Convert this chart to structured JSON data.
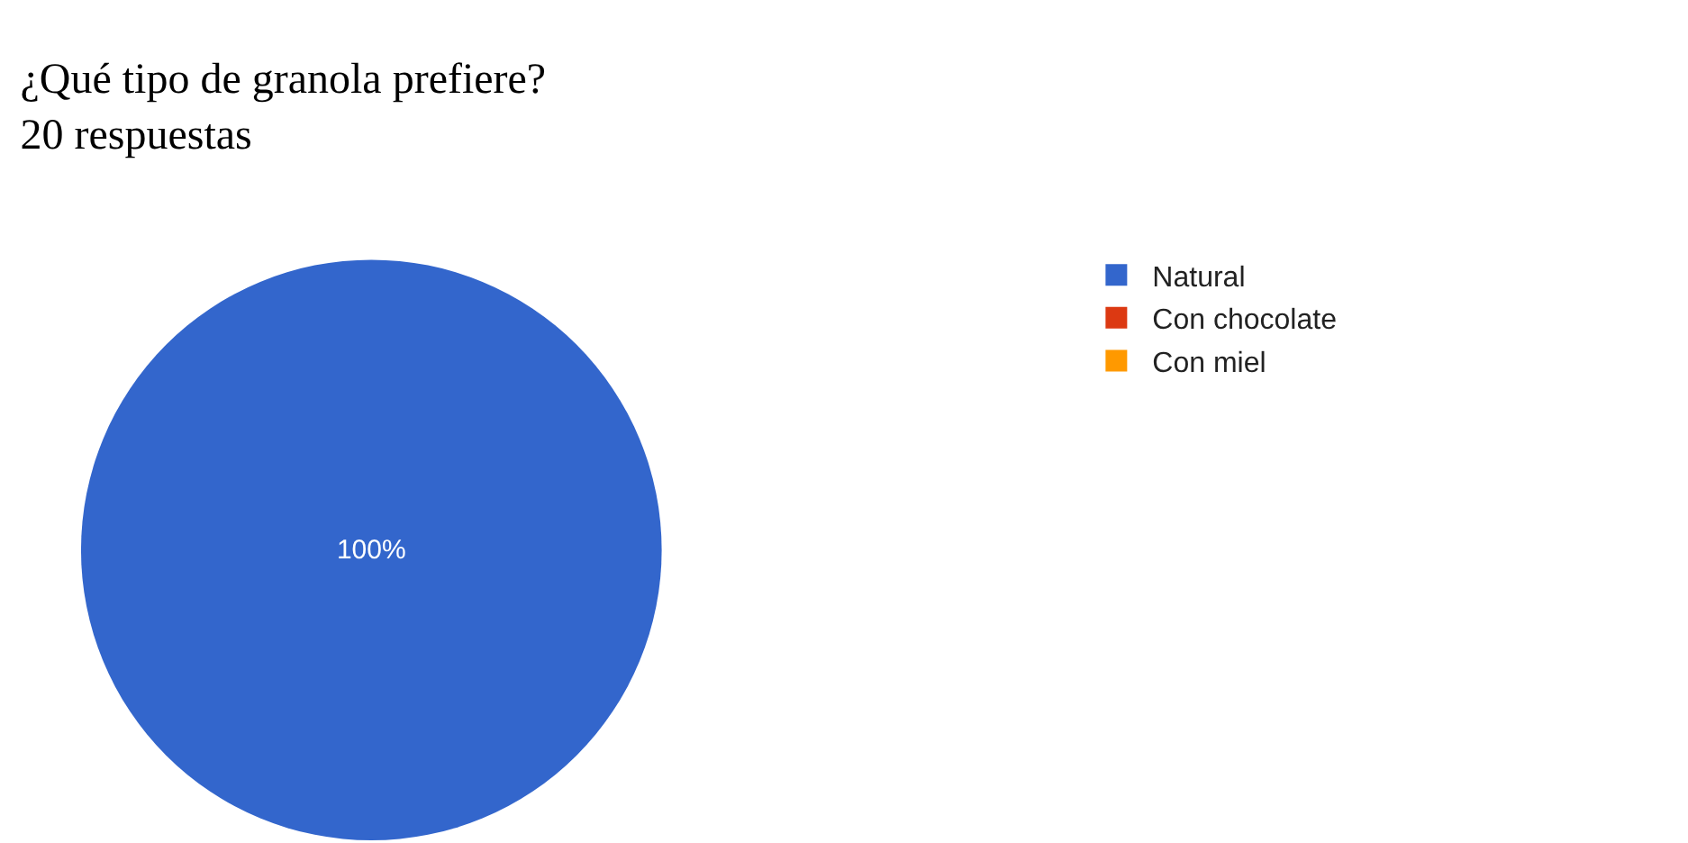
{
  "chart_data": {
    "type": "pie",
    "title": "¿Qué tipo de granola prefiere?",
    "subtitle": "20 respuestas",
    "categories": [
      "Natural",
      "Con chocolate",
      "Con miel"
    ],
    "values": [
      100,
      0,
      0
    ],
    "colors": [
      "#3366cc",
      "#dc3912",
      "#ff9900"
    ],
    "value_labels": [
      "100%",
      null,
      null
    ],
    "legend": "right"
  }
}
